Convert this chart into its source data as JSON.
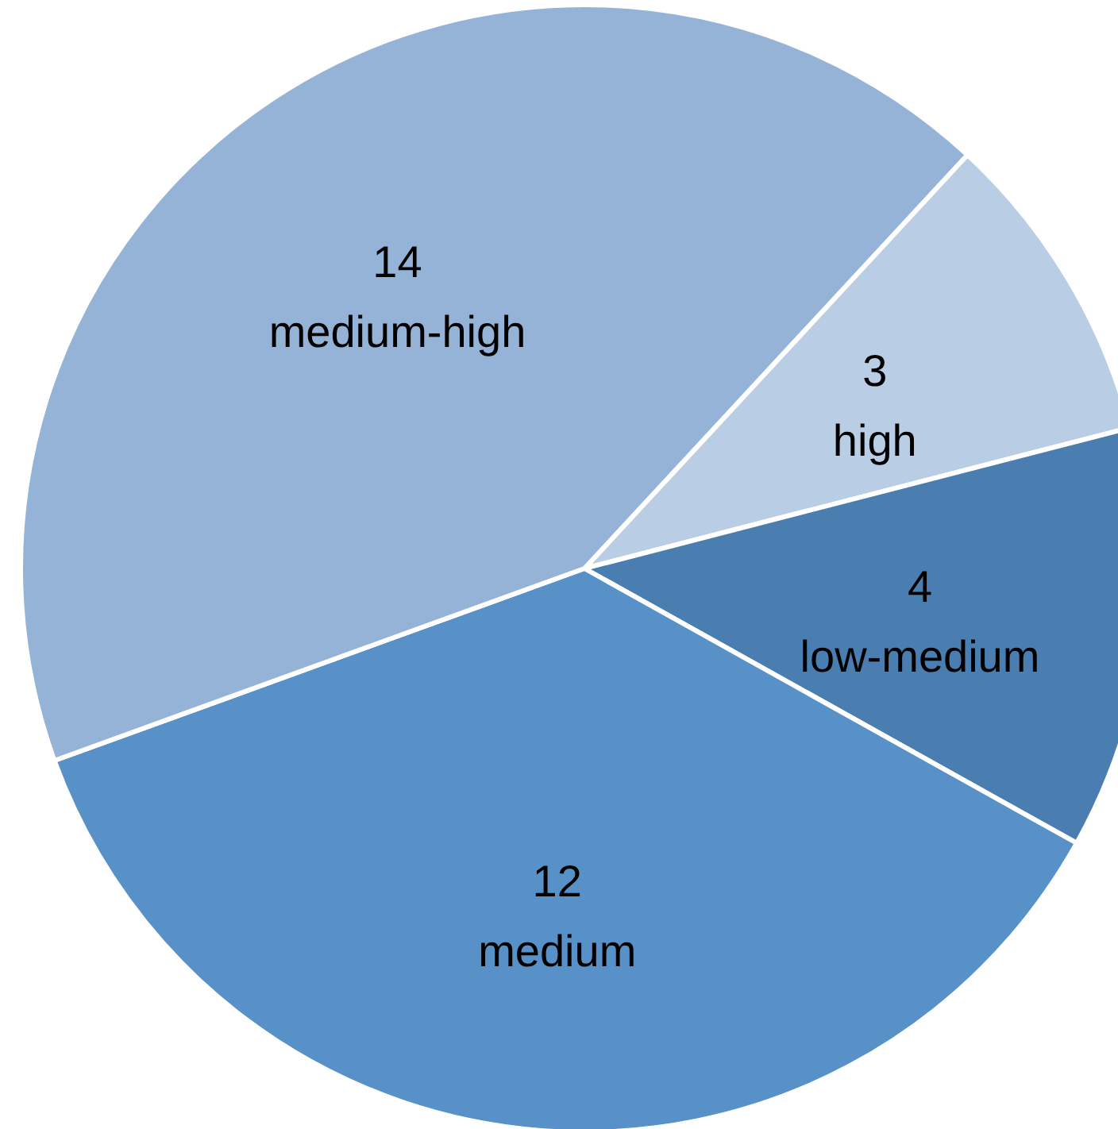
{
  "chart_data": {
    "type": "pie",
    "categories": [
      "high",
      "low-medium",
      "medium",
      "medium-high"
    ],
    "values": [
      3,
      4,
      12,
      14
    ],
    "colors": [
      "#b9cde5",
      "#4a7eb0",
      "#5891c8",
      "#95b3d7"
    ],
    "data_labels": true
  }
}
